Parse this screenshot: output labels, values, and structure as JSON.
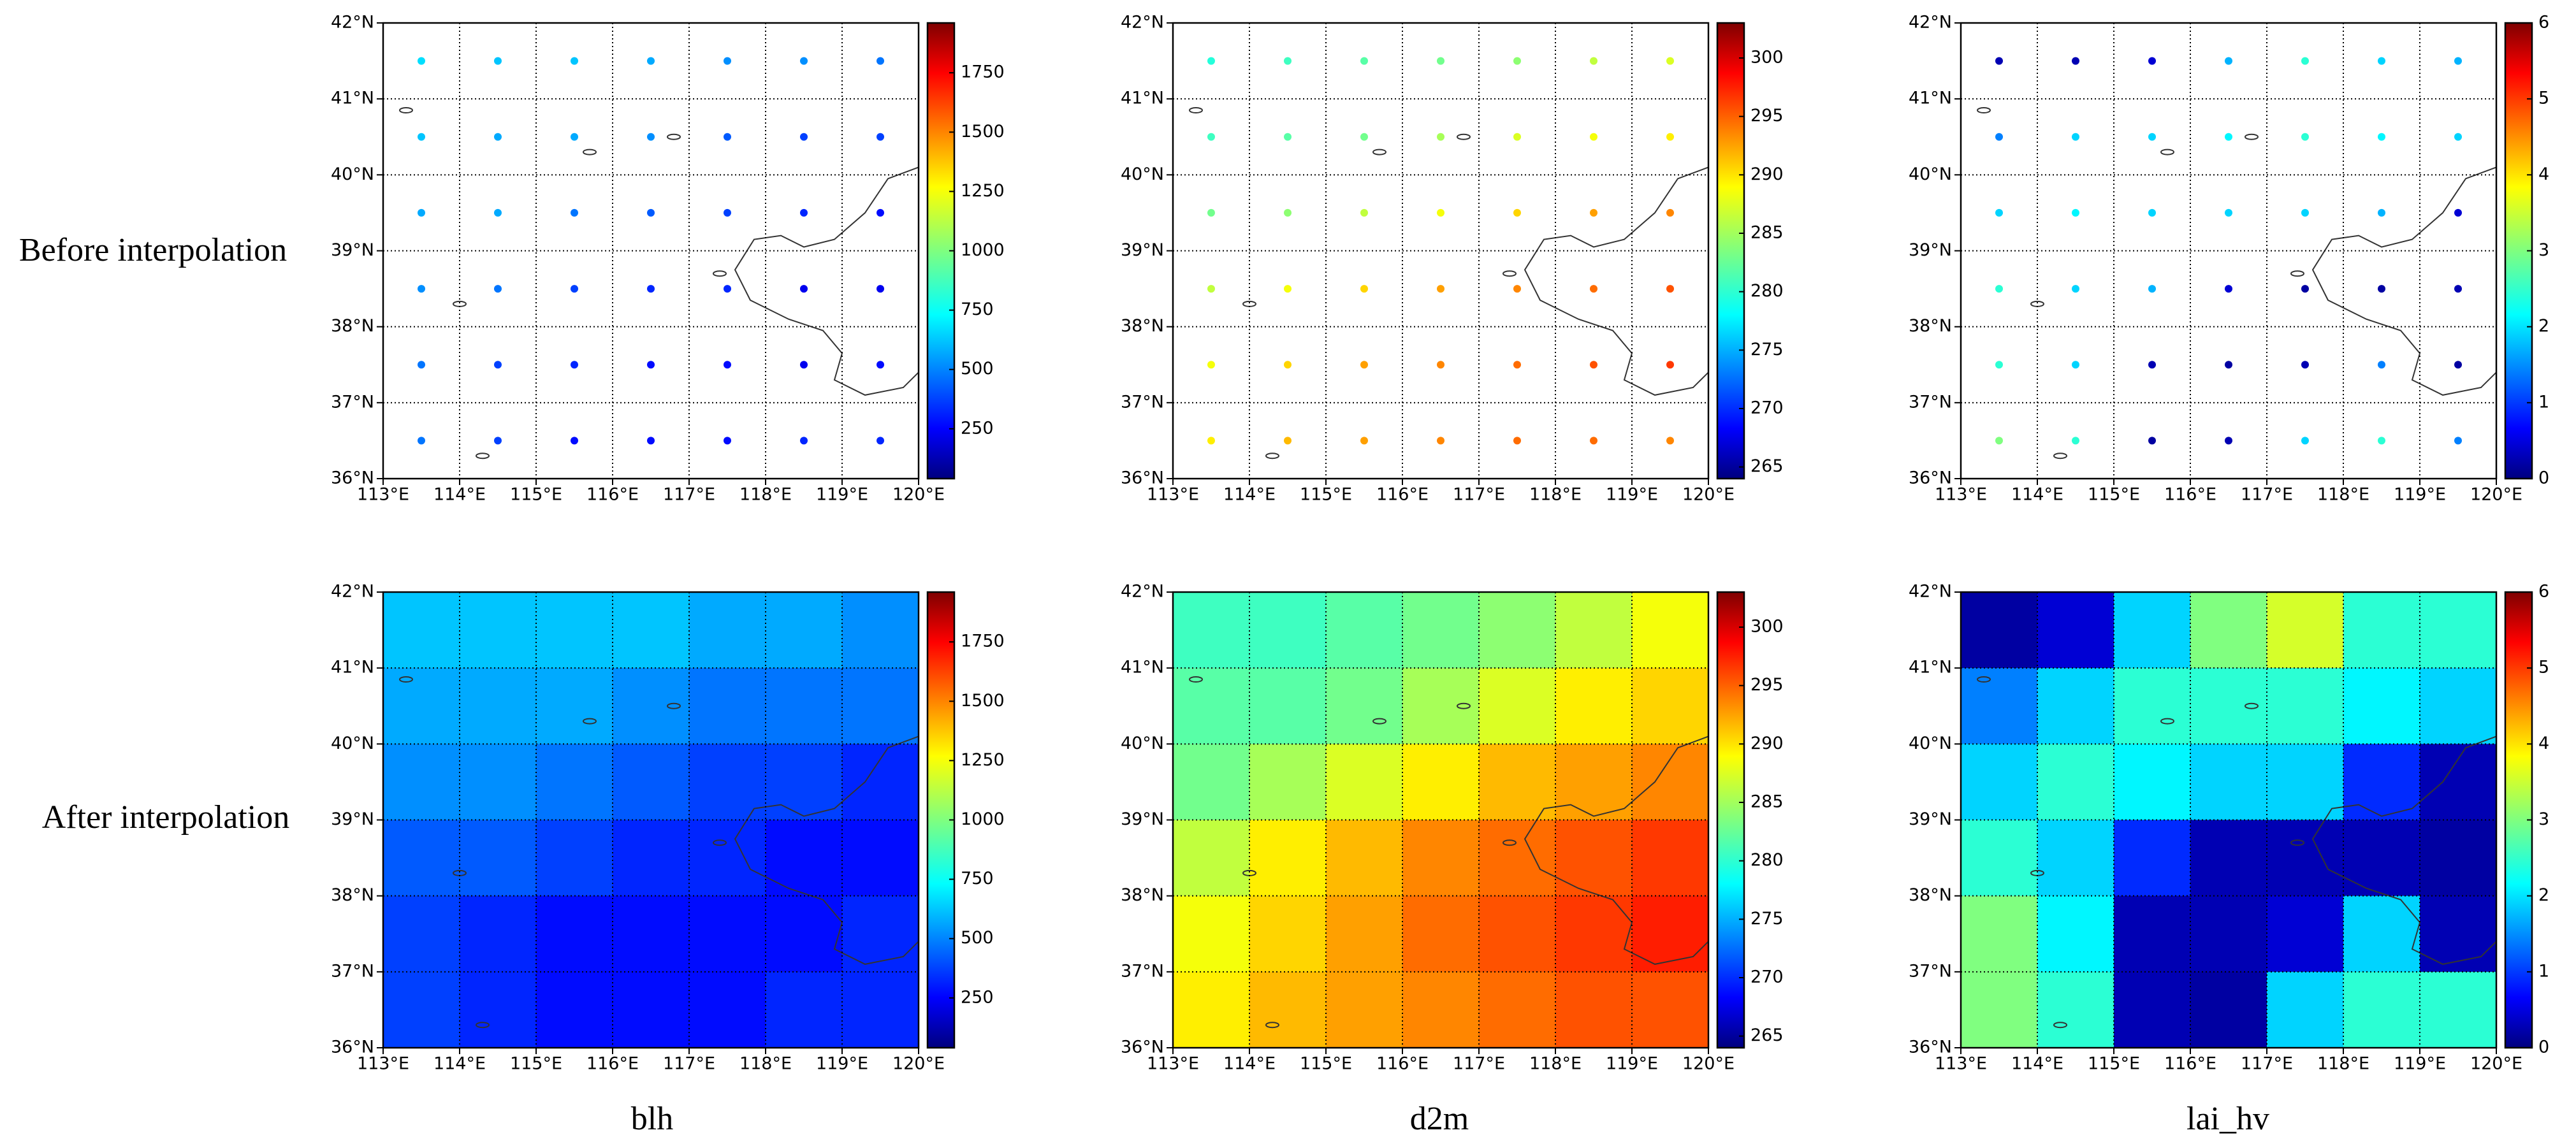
{
  "row_labels": [
    "Before interpolation",
    "After interpolation"
  ],
  "column_labels": [
    "blh",
    "d2m",
    "lai_hv"
  ],
  "chart_data": [
    {
      "type": "scatter",
      "x": [
        113.5,
        114.5,
        115.5,
        116.5,
        117.5,
        118.5,
        119.5
      ],
      "y": [
        41.5,
        40.5,
        39.5,
        38.5,
        37.5,
        36.5
      ],
      "values": [
        [
          700,
          650,
          650,
          600,
          550,
          550,
          500
        ],
        [
          650,
          600,
          600,
          550,
          450,
          400,
          400
        ],
        [
          600,
          600,
          500,
          450,
          400,
          350,
          300
        ],
        [
          550,
          500,
          400,
          350,
          350,
          250,
          250
        ],
        [
          500,
          400,
          350,
          300,
          300,
          250,
          300
        ],
        [
          500,
          400,
          300,
          300,
          300,
          350,
          350
        ]
      ],
      "xlim": [
        113,
        120
      ],
      "ylim": [
        36,
        42
      ],
      "xticks": [
        {
          "value": 113,
          "label": "113°E"
        },
        {
          "value": 114,
          "label": "114°E"
        },
        {
          "value": 115,
          "label": "115°E"
        },
        {
          "value": 116,
          "label": "116°E"
        },
        {
          "value": 117,
          "label": "117°E"
        },
        {
          "value": 118,
          "label": "118°E"
        },
        {
          "value": 119,
          "label": "119°E"
        },
        {
          "value": 120,
          "label": "120°E"
        }
      ],
      "yticks": [
        {
          "value": 36,
          "label": "36°N"
        },
        {
          "value": 37,
          "label": "37°N"
        },
        {
          "value": 38,
          "label": "38°N"
        },
        {
          "value": 39,
          "label": "39°N"
        },
        {
          "value": 40,
          "label": "40°N"
        },
        {
          "value": 41,
          "label": "41°N"
        },
        {
          "value": 42,
          "label": "42°N"
        }
      ],
      "clim": [
        40,
        1960
      ],
      "cticks": [
        250,
        500,
        750,
        1000,
        1250,
        1500,
        1750
      ],
      "colormap": "jet",
      "grid": true
    },
    {
      "type": "scatter",
      "x": [
        113.5,
        114.5,
        115.5,
        116.5,
        117.5,
        118.5,
        119.5
      ],
      "y": [
        41.5,
        40.5,
        39.5,
        38.5,
        37.5,
        36.5
      ],
      "values": [
        [
          280,
          281,
          282,
          283,
          284,
          286,
          287
        ],
        [
          281,
          282,
          283,
          285,
          287,
          288,
          289
        ],
        [
          283,
          284,
          286,
          288,
          290,
          292,
          293
        ],
        [
          286,
          288,
          290,
          292,
          293,
          294,
          295
        ],
        [
          288,
          290,
          292,
          293,
          294,
          295,
          296
        ],
        [
          289,
          291,
          292,
          293,
          294,
          294,
          293
        ]
      ],
      "xlim": [
        113,
        120
      ],
      "ylim": [
        36,
        42
      ],
      "xticks": [
        {
          "value": 113,
          "label": "113°E"
        },
        {
          "value": 114,
          "label": "114°E"
        },
        {
          "value": 115,
          "label": "115°E"
        },
        {
          "value": 116,
          "label": "116°E"
        },
        {
          "value": 117,
          "label": "117°E"
        },
        {
          "value": 118,
          "label": "118°E"
        },
        {
          "value": 119,
          "label": "119°E"
        },
        {
          "value": 120,
          "label": "120°E"
        }
      ],
      "yticks": [
        {
          "value": 36,
          "label": "36°N"
        },
        {
          "value": 37,
          "label": "37°N"
        },
        {
          "value": 38,
          "label": "38°N"
        },
        {
          "value": 39,
          "label": "39°N"
        },
        {
          "value": 40,
          "label": "40°N"
        },
        {
          "value": 41,
          "label": "41°N"
        },
        {
          "value": 42,
          "label": "42°N"
        }
      ],
      "clim": [
        264,
        303
      ],
      "cticks": [
        265,
        270,
        275,
        280,
        285,
        290,
        295,
        300
      ],
      "colormap": "jet",
      "grid": true
    },
    {
      "type": "scatter",
      "x": [
        113.5,
        114.5,
        115.5,
        116.5,
        117.5,
        118.5,
        119.5
      ],
      "y": [
        41.5,
        40.5,
        39.5,
        38.5,
        37.5,
        36.5
      ],
      "values": [
        [
          0.3,
          0.3,
          0.5,
          1.8,
          2.5,
          2,
          1.8
        ],
        [
          1.5,
          2,
          2,
          2.2,
          2.5,
          2.2,
          2
        ],
        [
          2,
          2.2,
          2,
          2,
          2,
          1.8,
          0.5
        ],
        [
          2.5,
          2,
          1.8,
          0.5,
          0.2,
          0.2,
          0.3
        ],
        [
          2.5,
          2,
          0.3,
          0.2,
          0.3,
          1.5,
          0.2
        ],
        [
          3,
          2.5,
          0.2,
          0.3,
          2,
          2.5,
          1.5
        ]
      ],
      "xlim": [
        113,
        120
      ],
      "ylim": [
        36,
        42
      ],
      "xticks": [
        {
          "value": 113,
          "label": "113°E"
        },
        {
          "value": 114,
          "label": "114°E"
        },
        {
          "value": 115,
          "label": "115°E"
        },
        {
          "value": 116,
          "label": "116°E"
        },
        {
          "value": 117,
          "label": "117°E"
        },
        {
          "value": 118,
          "label": "118°E"
        },
        {
          "value": 119,
          "label": "119°E"
        },
        {
          "value": 120,
          "label": "120°E"
        }
      ],
      "yticks": [
        {
          "value": 36,
          "label": "36°N"
        },
        {
          "value": 37,
          "label": "37°N"
        },
        {
          "value": 38,
          "label": "38°N"
        },
        {
          "value": 39,
          "label": "39°N"
        },
        {
          "value": 40,
          "label": "40°N"
        },
        {
          "value": 41,
          "label": "41°N"
        },
        {
          "value": 42,
          "label": "42°N"
        }
      ],
      "clim": [
        0,
        6
      ],
      "cticks": [
        0,
        1,
        2,
        3,
        4,
        5,
        6
      ],
      "colormap": "jet",
      "grid": true
    },
    {
      "type": "heatmap",
      "x": [
        113.5,
        114.5,
        115.5,
        116.5,
        117.5,
        118.5,
        119.5
      ],
      "y": [
        41.5,
        40.5,
        39.5,
        38.5,
        37.5,
        36.5
      ],
      "values": [
        [
          650,
          650,
          650,
          650,
          600,
          600,
          550
        ],
        [
          600,
          600,
          600,
          550,
          500,
          500,
          500
        ],
        [
          550,
          550,
          500,
          450,
          400,
          400,
          350
        ],
        [
          450,
          450,
          400,
          350,
          350,
          300,
          300
        ],
        [
          400,
          350,
          300,
          300,
          300,
          300,
          350
        ],
        [
          400,
          350,
          300,
          300,
          300,
          350,
          350
        ]
      ],
      "xlim": [
        113,
        120
      ],
      "ylim": [
        36,
        42
      ],
      "xticks": [
        {
          "value": 113,
          "label": "113°E"
        },
        {
          "value": 114,
          "label": "114°E"
        },
        {
          "value": 115,
          "label": "115°E"
        },
        {
          "value": 116,
          "label": "116°E"
        },
        {
          "value": 117,
          "label": "117°E"
        },
        {
          "value": 118,
          "label": "118°E"
        },
        {
          "value": 119,
          "label": "119°E"
        },
        {
          "value": 120,
          "label": "120°E"
        }
      ],
      "yticks": [
        {
          "value": 36,
          "label": "36°N"
        },
        {
          "value": 37,
          "label": "37°N"
        },
        {
          "value": 38,
          "label": "38°N"
        },
        {
          "value": 39,
          "label": "39°N"
        },
        {
          "value": 40,
          "label": "40°N"
        },
        {
          "value": 41,
          "label": "41°N"
        },
        {
          "value": 42,
          "label": "42°N"
        }
      ],
      "clim": [
        40,
        1960
      ],
      "cticks": [
        250,
        500,
        750,
        1000,
        1250,
        1500,
        1750
      ],
      "colormap": "jet",
      "grid": true
    },
    {
      "type": "heatmap",
      "x": [
        113.5,
        114.5,
        115.5,
        116.5,
        117.5,
        118.5,
        119.5
      ],
      "y": [
        41.5,
        40.5,
        39.5,
        38.5,
        37.5,
        36.5
      ],
      "values": [
        [
          281,
          281,
          282,
          283,
          284,
          286,
          288
        ],
        [
          282,
          282,
          283,
          285,
          287,
          289,
          290
        ],
        [
          283,
          285,
          287,
          289,
          291,
          292,
          293
        ],
        [
          286,
          289,
          291,
          293,
          294,
          295,
          296
        ],
        [
          288,
          290,
          292,
          294,
          295,
          296,
          297
        ],
        [
          289,
          291,
          292,
          293,
          294,
          295,
          295
        ]
      ],
      "xlim": [
        113,
        120
      ],
      "ylim": [
        36,
        42
      ],
      "xticks": [
        {
          "value": 113,
          "label": "113°E"
        },
        {
          "value": 114,
          "label": "114°E"
        },
        {
          "value": 115,
          "label": "115°E"
        },
        {
          "value": 116,
          "label": "116°E"
        },
        {
          "value": 117,
          "label": "117°E"
        },
        {
          "value": 118,
          "label": "118°E"
        },
        {
          "value": 119,
          "label": "119°E"
        },
        {
          "value": 120,
          "label": "120°E"
        }
      ],
      "yticks": [
        {
          "value": 36,
          "label": "36°N"
        },
        {
          "value": 37,
          "label": "37°N"
        },
        {
          "value": 38,
          "label": "38°N"
        },
        {
          "value": 39,
          "label": "39°N"
        },
        {
          "value": 40,
          "label": "40°N"
        },
        {
          "value": 41,
          "label": "41°N"
        },
        {
          "value": 42,
          "label": "42°N"
        }
      ],
      "clim": [
        264,
        303
      ],
      "cticks": [
        265,
        270,
        275,
        280,
        285,
        290,
        295,
        300
      ],
      "colormap": "jet",
      "grid": true
    },
    {
      "type": "heatmap",
      "x": [
        113.5,
        114.5,
        115.5,
        116.5,
        117.5,
        118.5,
        119.5
      ],
      "y": [
        41.5,
        40.5,
        39.5,
        38.5,
        37.5,
        36.5
      ],
      "values": [
        [
          0.2,
          0.5,
          2,
          3,
          3.5,
          2.5,
          2.5
        ],
        [
          1.5,
          2,
          2.5,
          2.5,
          2.5,
          2.2,
          2
        ],
        [
          2,
          2.5,
          2.2,
          2,
          2,
          1,
          0.3
        ],
        [
          2.5,
          2,
          1,
          0.3,
          0.3,
          0.3,
          0.2
        ],
        [
          3,
          2.2,
          0.3,
          0.3,
          0.5,
          2,
          0.3
        ],
        [
          3,
          2.5,
          0.3,
          0.2,
          2,
          2.5,
          2.5
        ]
      ],
      "xlim": [
        113,
        120
      ],
      "ylim": [
        36,
        42
      ],
      "xticks": [
        {
          "value": 113,
          "label": "113°E"
        },
        {
          "value": 114,
          "label": "114°E"
        },
        {
          "value": 115,
          "label": "115°E"
        },
        {
          "value": 116,
          "label": "116°E"
        },
        {
          "value": 117,
          "label": "117°E"
        },
        {
          "value": 118,
          "label": "118°E"
        },
        {
          "value": 119,
          "label": "119°E"
        },
        {
          "value": 120,
          "label": "120°E"
        }
      ],
      "yticks": [
        {
          "value": 36,
          "label": "36°N"
        },
        {
          "value": 37,
          "label": "37°N"
        },
        {
          "value": 38,
          "label": "38°N"
        },
        {
          "value": 39,
          "label": "39°N"
        },
        {
          "value": 40,
          "label": "40°N"
        },
        {
          "value": 41,
          "label": "41°N"
        },
        {
          "value": 42,
          "label": "42°N"
        }
      ],
      "clim": [
        0,
        6
      ],
      "cticks": [
        0,
        1,
        2,
        3,
        4,
        5,
        6
      ],
      "colormap": "jet",
      "grid": true
    }
  ]
}
